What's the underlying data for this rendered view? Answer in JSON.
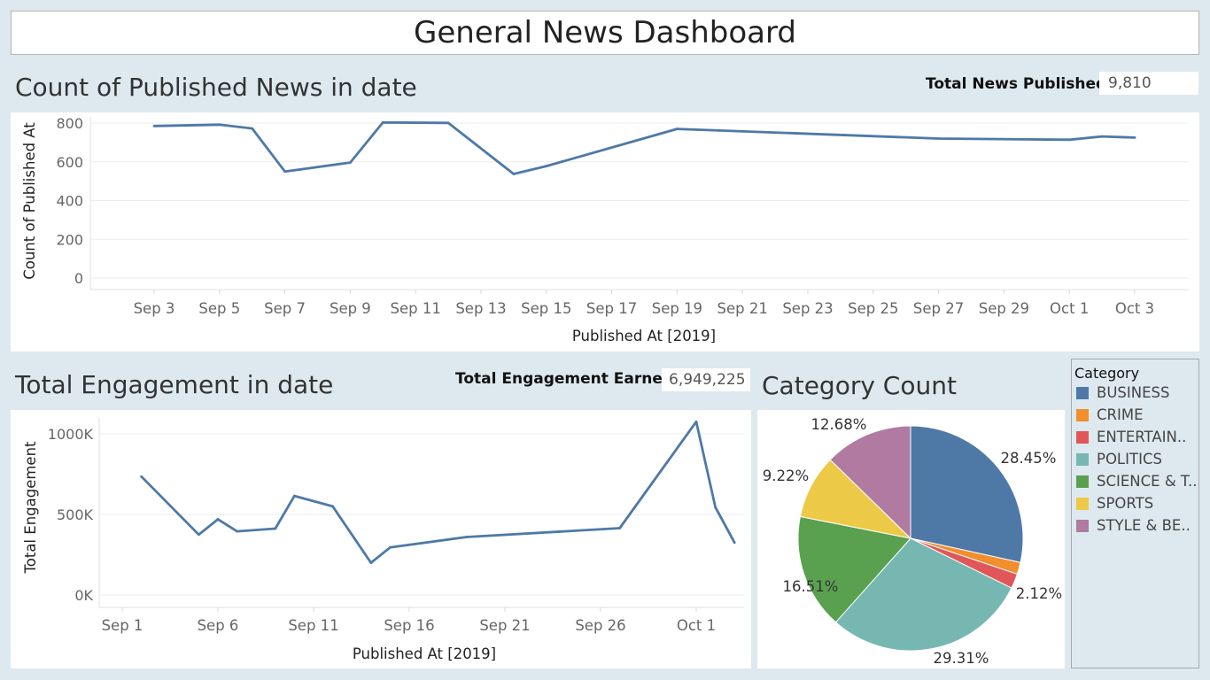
{
  "dashboard": {
    "title": "General News Dashboard"
  },
  "published": {
    "title": "Count of Published News in date",
    "kpi_label": "Total News Published",
    "kpi_value": "9,810"
  },
  "engagement": {
    "title": "Total Engagement in date",
    "kpi_label": "Total Engagement Earned",
    "kpi_value": "6,949,225"
  },
  "category": {
    "title": "Category Count",
    "legend_title": "Category",
    "legend_items": [
      {
        "label": "BUSINESS",
        "color": "#4e79a7"
      },
      {
        "label": "CRIME",
        "color": "#f28e2b"
      },
      {
        "label": "ENTERTAIN..",
        "color": "#e15759"
      },
      {
        "label": "POLITICS",
        "color": "#76b7b2"
      },
      {
        "label": "SCIENCE & T..",
        "color": "#59a14f"
      },
      {
        "label": "SPORTS",
        "color": "#edc948"
      },
      {
        "label": "STYLE & BE..",
        "color": "#b07aa1"
      }
    ]
  },
  "chart_data": [
    {
      "type": "line",
      "xlabel": "Published At [2019]",
      "ylabel": "Count of Published At",
      "ylim": [
        0,
        800
      ],
      "yticks": [
        0,
        200,
        400,
        600,
        800
      ],
      "xticks": [
        "Sep 3",
        "Sep 5",
        "Sep 7",
        "Sep 9",
        "Sep 11",
        "Sep 13",
        "Sep 15",
        "Sep 17",
        "Sep 19",
        "Sep 21",
        "Sep 23",
        "Sep 25",
        "Sep 27",
        "Sep 29",
        "Oct 1",
        "Oct 3"
      ],
      "grid": true,
      "color": "#4e79a7",
      "series": [
        {
          "x": [
            "2019-09-03",
            "2019-09-05",
            "2019-09-06",
            "2019-09-07",
            "2019-09-09",
            "2019-09-10",
            "2019-09-12",
            "2019-09-14",
            "2019-09-15",
            "2019-09-19",
            "2019-09-27",
            "2019-10-01",
            "2019-10-02",
            "2019-10-03"
          ],
          "values": [
            785,
            792,
            772,
            550,
            596,
            803,
            801,
            537,
            578,
            770,
            720,
            714,
            731,
            725
          ]
        }
      ]
    },
    {
      "type": "line",
      "xlabel": "Published At [2019]",
      "ylabel": "Total Engagement",
      "ylim": [
        0,
        1000000
      ],
      "yticks": [
        0,
        500000,
        1000000
      ],
      "ytick_labels": [
        "0K",
        "500K",
        "1000K"
      ],
      "xticks": [
        "Sep 1",
        "Sep 6",
        "Sep 11",
        "Sep 16",
        "Sep 21",
        "Sep 26",
        "Oct 1"
      ],
      "grid": true,
      "color": "#4e79a7",
      "series": [
        {
          "x": [
            "2019-09-02",
            "2019-09-05",
            "2019-09-06",
            "2019-09-07",
            "2019-09-09",
            "2019-09-10",
            "2019-09-12",
            "2019-09-14",
            "2019-09-15",
            "2019-09-19",
            "2019-09-27",
            "2019-10-01",
            "2019-10-02",
            "2019-10-03"
          ],
          "values": [
            735000,
            375000,
            470000,
            395000,
            412000,
            615000,
            550000,
            200000,
            295000,
            360000,
            415000,
            1075000,
            545000,
            325000
          ]
        }
      ]
    },
    {
      "type": "pie",
      "title": "Category Count",
      "legend": "right",
      "slices": [
        {
          "label": "BUSINESS",
          "value": 28.45,
          "color": "#4e79a7",
          "text": "28.45%"
        },
        {
          "label": "CRIME",
          "value": 1.71,
          "color": "#f28e2b",
          "text": ""
        },
        {
          "label": "ENTERTAIN..",
          "value": 2.12,
          "color": "#e15759",
          "text": "2.12%"
        },
        {
          "label": "POLITICS",
          "value": 29.31,
          "color": "#76b7b2",
          "text": "29.31%"
        },
        {
          "label": "SCIENCE & T..",
          "value": 16.51,
          "color": "#59a14f",
          "text": "16.51%"
        },
        {
          "label": "SPORTS",
          "value": 9.22,
          "color": "#edc948",
          "text": "9.22%"
        },
        {
          "label": "STYLE & BE..",
          "value": 12.68,
          "color": "#b07aa1",
          "text": "12.68%"
        }
      ]
    }
  ]
}
